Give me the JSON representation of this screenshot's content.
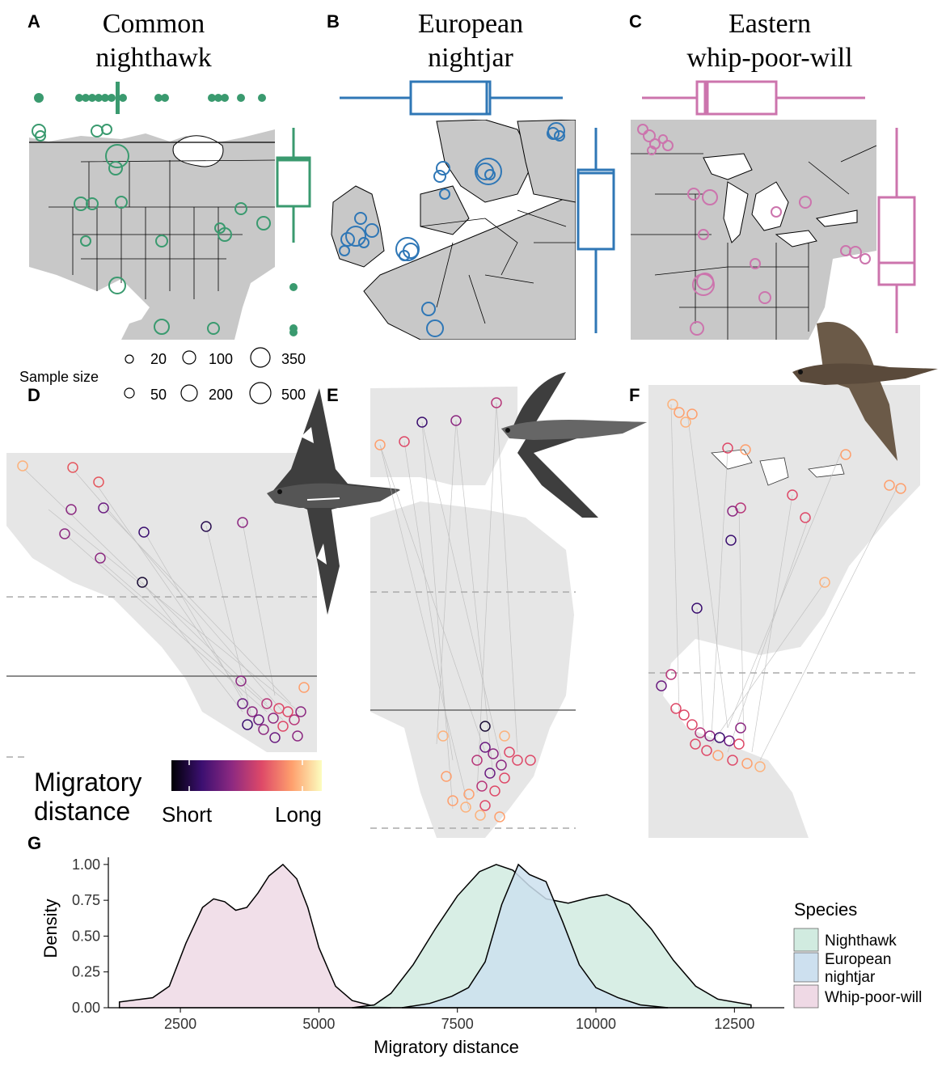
{
  "panels": {
    "A": {
      "letter": "A",
      "title_line1": "Common",
      "title_line2": "nighthawk",
      "color": "#3a9a6f"
    },
    "B": {
      "letter": "B",
      "title_line1": "European",
      "title_line2": "nightjar",
      "color": "#2f77b6"
    },
    "C": {
      "letter": "C",
      "title_line1": "Eastern",
      "title_line2": "whip-poor-will",
      "color": "#cc74ad"
    },
    "D": {
      "letter": "D"
    },
    "E": {
      "letter": "E"
    },
    "F": {
      "letter": "F"
    },
    "G": {
      "letter": "G"
    }
  },
  "sample_size_legend": {
    "title": "Sample size",
    "values": [
      "20",
      "100",
      "350",
      "50",
      "200",
      "500"
    ]
  },
  "distance_legend": {
    "title_line1": "Migratory",
    "title_line2": "distance",
    "low_label": "Short",
    "high_label": "Long",
    "gradient": [
      "#000004",
      "#3b0f70",
      "#8c2981",
      "#de4968",
      "#fe9f6d",
      "#fcfdbf"
    ]
  },
  "chart_data": [
    {
      "type": "area",
      "panel": "G",
      "xlabel": "Migratory distance",
      "ylabel": "Density",
      "xlim": [
        1200,
        13400
      ],
      "ylim": [
        0,
        1.05
      ],
      "x_ticks": [
        "2500",
        "5000",
        "7500",
        "10000",
        "12500"
      ],
      "y_ticks": [
        "0.00",
        "0.25",
        "0.50",
        "0.75",
        "1.00"
      ],
      "legend_title": "Species",
      "legend_position": "right",
      "grid": false,
      "series": [
        {
          "name": "Nighthawk",
          "color": "#d1ebe0",
          "points": [
            [
              5600,
              0
            ],
            [
              6000,
              0.02
            ],
            [
              6300,
              0.1
            ],
            [
              6700,
              0.3
            ],
            [
              7100,
              0.55
            ],
            [
              7500,
              0.78
            ],
            [
              7900,
              0.95
            ],
            [
              8200,
              1.0
            ],
            [
              8500,
              0.96
            ],
            [
              8800,
              0.85
            ],
            [
              9100,
              0.76
            ],
            [
              9500,
              0.73
            ],
            [
              9900,
              0.77
            ],
            [
              10200,
              0.79
            ],
            [
              10600,
              0.72
            ],
            [
              11000,
              0.55
            ],
            [
              11400,
              0.33
            ],
            [
              11800,
              0.15
            ],
            [
              12200,
              0.06
            ],
            [
              12800,
              0.02
            ],
            [
              12800,
              0
            ]
          ]
        },
        {
          "name": "European nightjar",
          "color": "#cde0ef",
          "points": [
            [
              6500,
              0
            ],
            [
              7000,
              0.03
            ],
            [
              7400,
              0.08
            ],
            [
              7700,
              0.14
            ],
            [
              8000,
              0.32
            ],
            [
              8300,
              0.72
            ],
            [
              8600,
              1.0
            ],
            [
              8800,
              0.93
            ],
            [
              9100,
              0.88
            ],
            [
              9400,
              0.6
            ],
            [
              9700,
              0.3
            ],
            [
              10000,
              0.14
            ],
            [
              10400,
              0.07
            ],
            [
              10800,
              0.02
            ],
            [
              11300,
              0
            ]
          ]
        },
        {
          "name": "Whip-poor-will",
          "color": "#efd9e5",
          "points": [
            [
              1400,
              0.04
            ],
            [
              2000,
              0.07
            ],
            [
              2300,
              0.15
            ],
            [
              2600,
              0.45
            ],
            [
              2900,
              0.7
            ],
            [
              3100,
              0.76
            ],
            [
              3300,
              0.74
            ],
            [
              3500,
              0.68
            ],
            [
              3700,
              0.7
            ],
            [
              3900,
              0.8
            ],
            [
              4100,
              0.92
            ],
            [
              4350,
              1.0
            ],
            [
              4600,
              0.9
            ],
            [
              4800,
              0.7
            ],
            [
              5000,
              0.42
            ],
            [
              5300,
              0.15
            ],
            [
              5600,
              0.05
            ],
            [
              6000,
              0.01
            ],
            [
              6300,
              0
            ]
          ]
        }
      ]
    },
    {
      "type": "boxplot",
      "panel": "B",
      "orientation": "horizontal+vertical",
      "color": "#2f77b6"
    },
    {
      "type": "boxplot",
      "panel": "C",
      "orientation": "horizontal+vertical",
      "color": "#cc74ad"
    }
  ]
}
